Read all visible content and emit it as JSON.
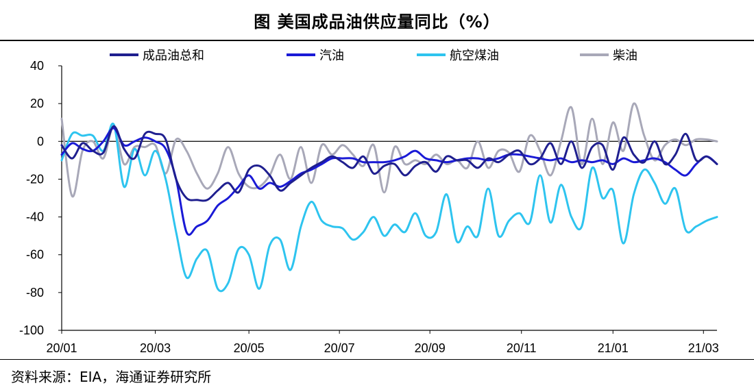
{
  "title": "图  美国成品油供应量同比（%）",
  "source": "资料来源：EIA，海通证券研究所",
  "chart_data": {
    "type": "line",
    "ylim": [
      -100,
      40
    ],
    "yticks": [
      40,
      20,
      0,
      -20,
      -40,
      -60,
      -80,
      -100
    ],
    "xlim": [
      0,
      63
    ],
    "xticks": [
      {
        "pos": 0,
        "label": "20/01"
      },
      {
        "pos": 9,
        "label": "20/03"
      },
      {
        "pos": 18,
        "label": "20/05"
      },
      {
        "pos": 26.7,
        "label": "20/07"
      },
      {
        "pos": 35.4,
        "label": "20/09"
      },
      {
        "pos": 44.2,
        "label": "20/11"
      },
      {
        "pos": 53,
        "label": "21/01"
      },
      {
        "pos": 61.7,
        "label": "21/03"
      }
    ],
    "grid": false,
    "legend_position": "top",
    "series": [
      {
        "name": "成品油总和",
        "color": "#1f1f8f",
        "x": [
          0,
          1,
          2,
          3,
          4,
          5,
          6,
          7,
          8,
          9,
          10,
          11,
          12,
          13,
          14,
          15,
          16,
          17,
          18,
          19,
          20,
          21,
          22,
          23,
          24,
          25,
          26,
          27,
          28,
          29,
          30,
          31,
          32,
          33,
          34,
          35,
          36,
          37,
          38,
          39,
          40,
          41,
          42,
          43,
          44,
          45,
          46,
          47,
          48,
          49,
          50,
          51,
          52,
          53,
          54,
          55,
          56,
          57,
          58,
          59,
          60,
          61,
          62,
          63
        ],
        "values": [
          -2,
          -9,
          -1,
          -5,
          -6,
          8,
          -4,
          -9,
          4,
          4,
          1,
          -20,
          -30,
          -31,
          -31,
          -26,
          -22,
          -27,
          -15,
          -13,
          -18,
          -26,
          -22,
          -18,
          -14,
          -11,
          -8,
          -11,
          -14,
          -8,
          -17,
          -13,
          -12,
          -18,
          -13,
          -11,
          -16,
          -8,
          -10,
          -10,
          -14,
          -9,
          -11,
          -7,
          -5,
          -12,
          -9,
          -1,
          -12,
          0,
          -14,
          -3,
          -2,
          -15,
          2,
          -7,
          -11,
          0,
          -12,
          -7,
          4,
          -10,
          -8,
          -12
        ]
      },
      {
        "name": "汽油",
        "color": "#1a1ad6",
        "x": [
          0,
          1,
          2,
          3,
          4,
          5,
          6,
          7,
          8,
          9,
          10,
          11,
          12,
          13,
          14,
          15,
          16,
          17,
          18,
          19,
          20,
          21,
          22,
          23,
          24,
          25,
          26,
          27,
          28,
          29,
          30,
          31,
          32,
          33,
          34,
          35,
          36,
          37,
          38,
          39,
          40,
          41,
          42,
          43,
          44,
          45,
          46,
          47,
          48,
          49,
          50,
          51,
          52,
          53,
          54,
          55,
          56,
          57,
          58,
          59,
          60,
          61,
          62,
          63
        ],
        "values": [
          -7,
          -1,
          -4,
          -5,
          0,
          7,
          -2,
          0,
          2,
          0,
          -4,
          -20,
          -48,
          -45,
          -42,
          -34,
          -30,
          -24,
          -18,
          -25,
          -22,
          -24,
          -21,
          -17,
          -15,
          -12,
          -9,
          -9,
          -9,
          -11,
          -11,
          -11,
          -10,
          -8,
          -5,
          -9,
          -10,
          -11,
          -10,
          -9,
          -9,
          -10,
          -9,
          -7,
          -7,
          -8,
          -9,
          -10,
          -9,
          -11,
          -10,
          -11,
          -10,
          -12,
          -9,
          -11,
          -10,
          -9,
          -11,
          -15,
          -18,
          -12,
          -8,
          -12
        ]
      },
      {
        "name": "航空煤油",
        "color": "#2ec4ef",
        "x": [
          0,
          1,
          2,
          3,
          4,
          5,
          6,
          7,
          8,
          9,
          10,
          11,
          12,
          13,
          14,
          15,
          16,
          17,
          18,
          19,
          20,
          21,
          22,
          23,
          24,
          25,
          26,
          27,
          28,
          29,
          30,
          31,
          32,
          33,
          34,
          35,
          36,
          37,
          38,
          39,
          40,
          41,
          42,
          43,
          44,
          45,
          46,
          47,
          48,
          49,
          50,
          51,
          52,
          53,
          54,
          55,
          56,
          57,
          58,
          59,
          60,
          61,
          62,
          63
        ],
        "values": [
          -10,
          4,
          3,
          3,
          -5,
          9,
          -24,
          -4,
          -18,
          -5,
          -20,
          -48,
          -72,
          -62,
          -58,
          -78,
          -75,
          -57,
          -60,
          -78,
          -55,
          -52,
          -68,
          -45,
          -32,
          -42,
          -45,
          -46,
          -52,
          -48,
          -40,
          -50,
          -44,
          -48,
          -38,
          -50,
          -48,
          -28,
          -53,
          -45,
          -50,
          -25,
          -50,
          -42,
          -38,
          -43,
          -18,
          -43,
          -23,
          -40,
          -45,
          -14,
          -30,
          -26,
          -54,
          -28,
          -15,
          -22,
          -33,
          -25,
          -47,
          -45,
          -42,
          -40
        ]
      },
      {
        "name": "柴油",
        "color": "#a8a8b8",
        "x": [
          0,
          1,
          2,
          3,
          4,
          5,
          6,
          7,
          8,
          9,
          10,
          11,
          12,
          13,
          14,
          15,
          16,
          17,
          18,
          19,
          20,
          21,
          22,
          23,
          24,
          25,
          26,
          27,
          28,
          29,
          30,
          31,
          32,
          33,
          34,
          35,
          36,
          37,
          38,
          39,
          40,
          41,
          42,
          43,
          44,
          45,
          46,
          47,
          48,
          49,
          50,
          51,
          52,
          53,
          54,
          55,
          56,
          57,
          58,
          59,
          60,
          61,
          62,
          63
        ],
        "values": [
          12,
          -29,
          -5,
          0,
          -9,
          8,
          -12,
          -3,
          -3,
          -2,
          -17,
          1,
          -5,
          -17,
          -25,
          -17,
          -3,
          -17,
          -24,
          -24,
          -18,
          -7,
          -20,
          -3,
          -22,
          -2,
          -7,
          -2,
          -7,
          -13,
          -2,
          -27,
          -3,
          -12,
          -10,
          -12,
          -7,
          -12,
          -10,
          -14,
          0,
          -14,
          -5,
          -6,
          -16,
          3,
          -5,
          -18,
          0,
          18,
          -12,
          12,
          -12,
          10,
          -5,
          20,
          3,
          -10,
          -2,
          1,
          -2,
          1,
          1,
          0
        ]
      }
    ]
  }
}
